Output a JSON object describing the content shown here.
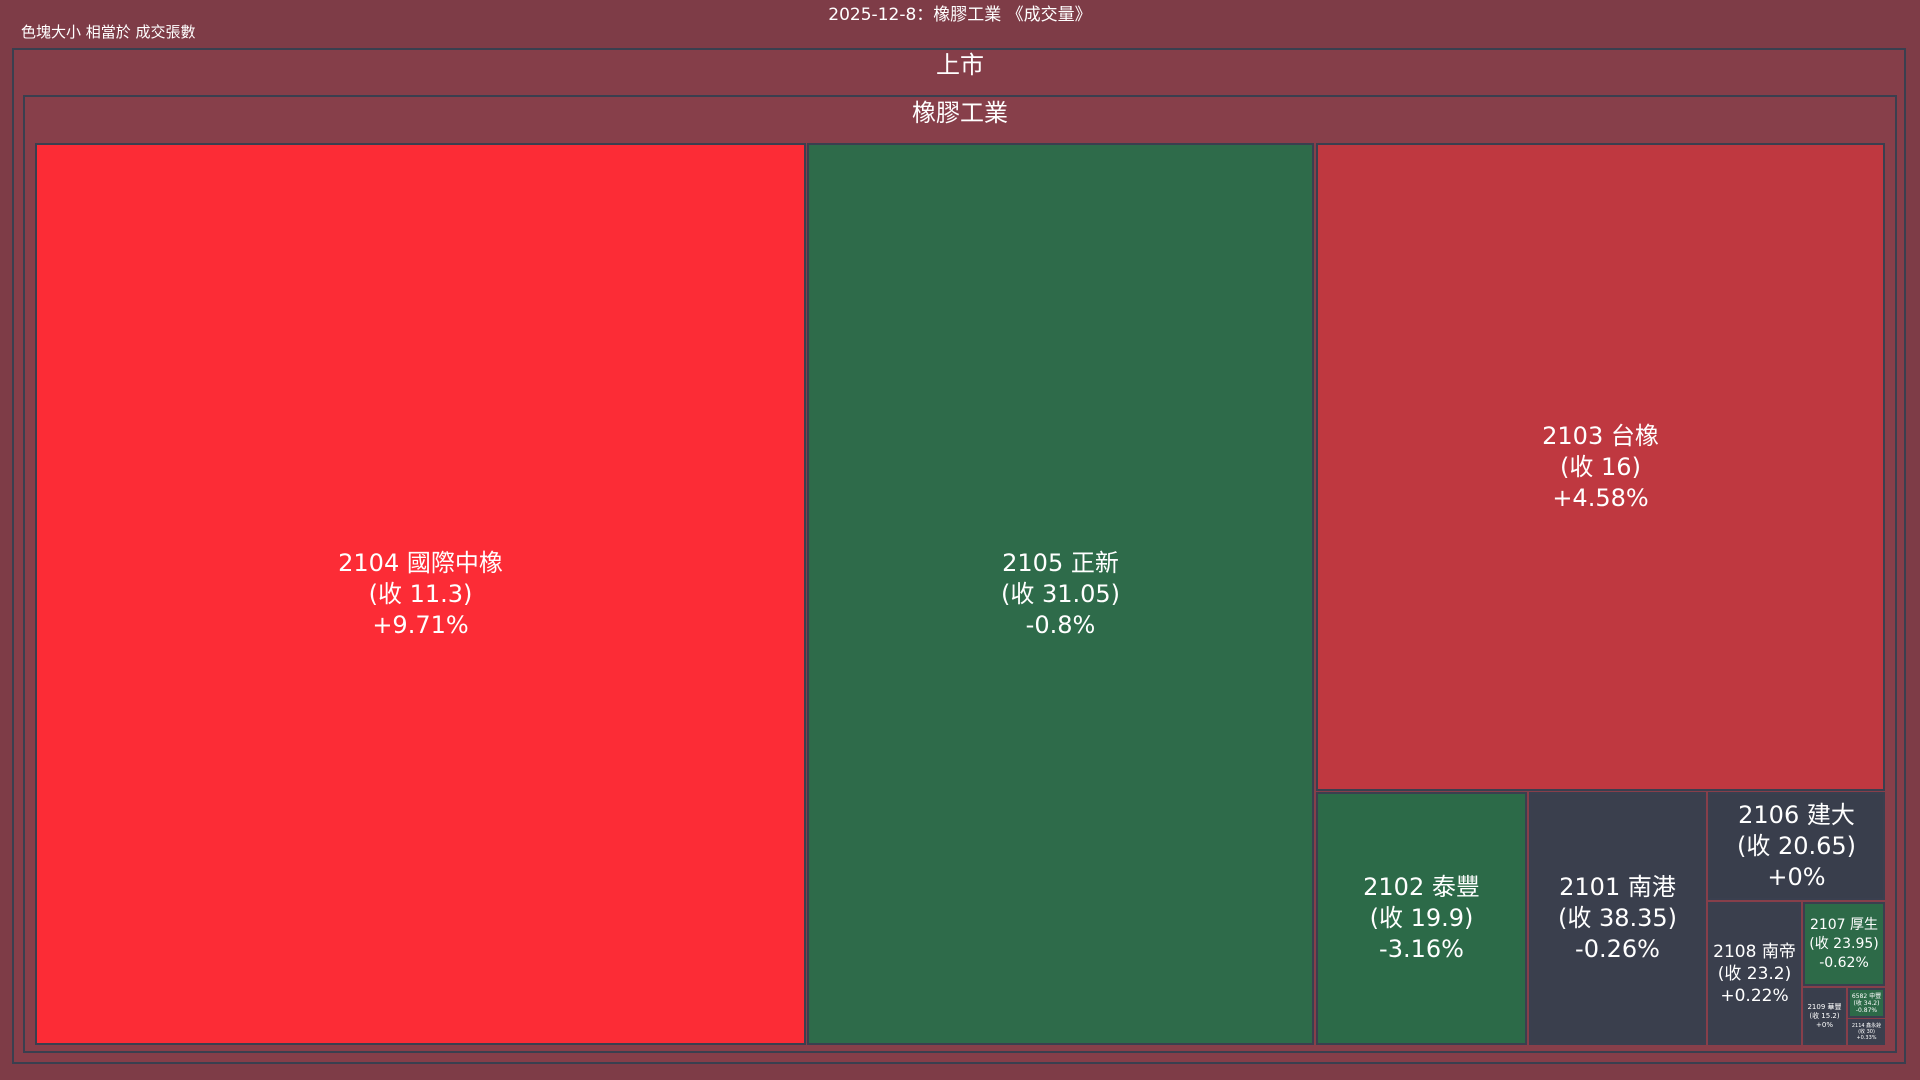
{
  "title": "2025-12-8：橡膠工業 《成交量》",
  "size_note": "色塊大小 相當於 成交張數",
  "market_label": "上市",
  "industry_label": "橡膠工業",
  "colors": {
    "background": "#7e3c47",
    "frame_border": "#3a3f4f"
  },
  "chart_data": {
    "type": "treemap",
    "title": "2025-12-8：橡膠工業 《成交量》",
    "hierarchy": [
      "上市",
      "橡膠工業"
    ],
    "items": [
      {
        "code": "2104",
        "name": "國際中橡",
        "close": "(收 11.3)",
        "change": "+9.71%",
        "change_pct": 9.71,
        "color": "#fc2c36"
      },
      {
        "code": "2105",
        "name": "正新",
        "close": "(收 31.05)",
        "change": "-0.8%",
        "change_pct": -0.8,
        "color": "#2e6b4a"
      },
      {
        "code": "2103",
        "name": "台橡",
        "close": "(收 16)",
        "change": "+4.58%",
        "change_pct": 4.58,
        "color": "#bf3840"
      },
      {
        "code": "2102",
        "name": "泰豐",
        "close": "(收 19.9)",
        "change": "-3.16%",
        "change_pct": -3.16,
        "color": "#2c6a48"
      },
      {
        "code": "2101",
        "name": "南港",
        "close": "(收 38.35)",
        "change": "-0.26%",
        "change_pct": -0.26,
        "color": "#3a3f4d"
      },
      {
        "code": "2106",
        "name": "建大",
        "close": "(收 20.65)",
        "change": "+0%",
        "change_pct": 0,
        "color": "#393e4c"
      },
      {
        "code": "2108",
        "name": "南帝",
        "close": "(收 23.2)",
        "change": "+0.22%",
        "change_pct": 0.22,
        "color": "#3a3f4d"
      },
      {
        "code": "2107",
        "name": "厚生",
        "close": "(收 23.95)",
        "change": "-0.62%",
        "change_pct": -0.62,
        "color": "#2d6a48"
      },
      {
        "code": "2109",
        "name": "華豐",
        "close": "(收 15.2)",
        "change": "+0%",
        "change_pct": 0,
        "color": "#393e4c"
      },
      {
        "code": "6582",
        "name": "申豐",
        "close": "(收 34.2)",
        "change": "-0.87%",
        "change_pct": -0.87,
        "color": "#2d6a48"
      },
      {
        "code": "2114",
        "name": "鑫永銓",
        "close": "(收 30)",
        "change": "+0.33%",
        "change_pct": 0.33,
        "color": "#3a3f4d"
      }
    ]
  }
}
